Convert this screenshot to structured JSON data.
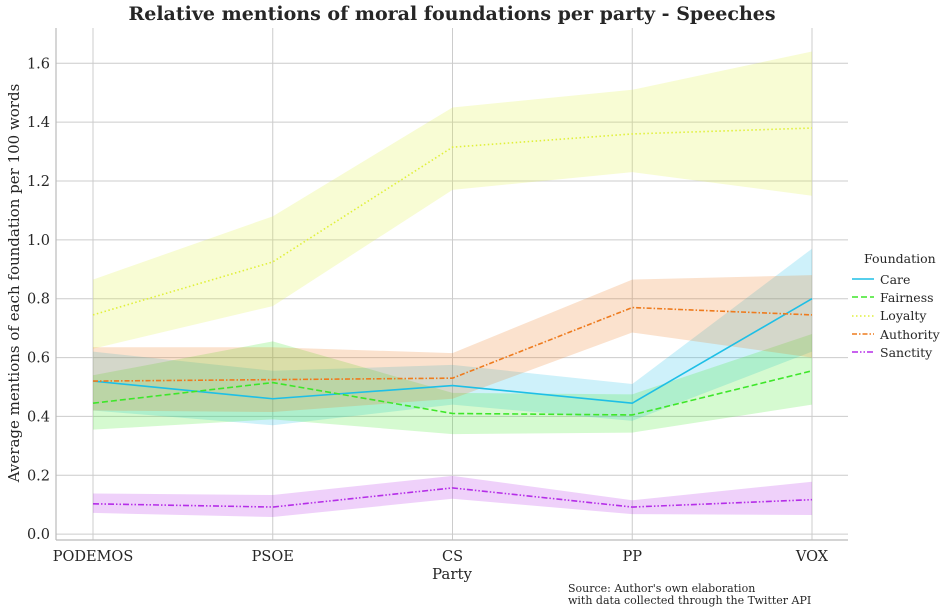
{
  "chart_data": {
    "type": "line",
    "title": "Relative mentions of moral foundations per party - Speeches",
    "xlabel": "Party",
    "ylabel": "Average mentions of each foundation per 100 words",
    "categories": [
      "PODEMOS",
      "PSOE",
      "CS",
      "PP",
      "VOX"
    ],
    "ylim": [
      -0.02,
      1.72
    ],
    "yticks": [
      "0.0",
      "0.2",
      "0.4",
      "0.6",
      "0.8",
      "1.0",
      "1.2",
      "1.4",
      "1.6"
    ],
    "grid": true,
    "legend": {
      "title": "Foundation",
      "placement": "right"
    },
    "series": [
      {
        "name": "Care",
        "color": "#1ebfe6",
        "dash": "solid",
        "values": [
          0.52,
          0.46,
          0.505,
          0.445,
          0.8
        ],
        "lower": [
          0.42,
          0.37,
          0.44,
          0.385,
          0.62
        ],
        "upper": [
          0.62,
          0.555,
          0.575,
          0.51,
          0.97
        ]
      },
      {
        "name": "Fairness",
        "color": "#3ee62a",
        "dash": "dashed",
        "values": [
          0.445,
          0.515,
          0.41,
          0.405,
          0.555
        ],
        "lower": [
          0.355,
          0.39,
          0.34,
          0.345,
          0.44
        ],
        "upper": [
          0.54,
          0.655,
          0.48,
          0.475,
          0.68
        ]
      },
      {
        "name": "Loyalty",
        "color": "#e0f03a",
        "dash": "dotted",
        "values": [
          0.745,
          0.925,
          1.315,
          1.36,
          1.38
        ],
        "lower": [
          0.63,
          0.775,
          1.17,
          1.23,
          1.15
        ],
        "upper": [
          0.865,
          1.08,
          1.45,
          1.51,
          1.64
        ]
      },
      {
        "name": "Authority",
        "color": "#ee7b1e",
        "dash": "dashdot",
        "values": [
          0.52,
          0.525,
          0.53,
          0.77,
          0.745
        ],
        "lower": [
          0.42,
          0.415,
          0.46,
          0.685,
          0.6
        ],
        "upper": [
          0.635,
          0.635,
          0.615,
          0.865,
          0.88
        ]
      },
      {
        "name": "Sanctity",
        "color": "#b52ee8",
        "dash": "dashdotdot",
        "values": [
          0.103,
          0.092,
          0.157,
          0.092,
          0.117
        ],
        "lower": [
          0.072,
          0.058,
          0.12,
          0.068,
          0.065
        ],
        "upper": [
          0.138,
          0.133,
          0.198,
          0.115,
          0.178
        ]
      }
    ],
    "source_lines": [
      "Source: Author's own elaboration",
      "with data collected through the Twitter API"
    ]
  }
}
